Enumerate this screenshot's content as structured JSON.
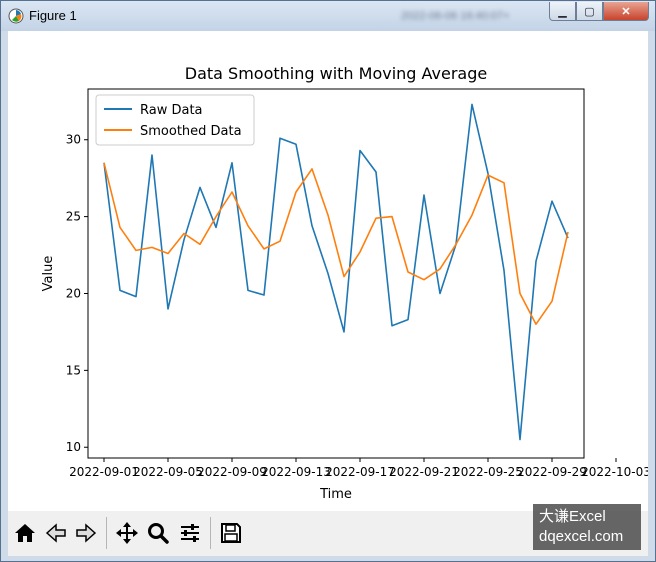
{
  "window": {
    "title": "Figure 1",
    "blurred_caption": "2022-06-06 16:40:07+"
  },
  "chart_data": {
    "type": "line",
    "title": "Data Smoothing with Moving Average",
    "xlabel": "Time",
    "ylabel": "Value",
    "x": [
      "2022-09-01",
      "2022-09-02",
      "2022-09-03",
      "2022-09-04",
      "2022-09-05",
      "2022-09-06",
      "2022-09-07",
      "2022-09-08",
      "2022-09-09",
      "2022-09-10",
      "2022-09-11",
      "2022-09-12",
      "2022-09-13",
      "2022-09-14",
      "2022-09-15",
      "2022-09-16",
      "2022-09-17",
      "2022-09-18",
      "2022-09-19",
      "2022-09-20",
      "2022-09-21",
      "2022-09-22",
      "2022-09-23",
      "2022-09-24",
      "2022-09-25",
      "2022-09-26",
      "2022-09-27",
      "2022-09-28",
      "2022-09-29",
      "2022-09-30"
    ],
    "xticks": [
      "2022-09-01",
      "2022-09-05",
      "2022-09-09",
      "2022-09-13",
      "2022-09-17",
      "2022-09-21",
      "2022-09-25",
      "2022-09-29",
      "2022-10-03"
    ],
    "xtick_labels": [
      "2022-09-01",
      "2022-09-05",
      "2022-09-09",
      "2022-09-13",
      "2022-09-17",
      "2022-09-21",
      "2022-09-25",
      "2022-09-29",
      "2022-10-03"
    ],
    "xlim": [
      "2022-08-31",
      "2022-10-01"
    ],
    "yticks": [
      10,
      15,
      20,
      25,
      30
    ],
    "ylim": [
      9.3,
      33.3
    ],
    "grid": false,
    "legend_position": "upper-left",
    "series": [
      {
        "name": "Raw Data",
        "color": "#1f77b4",
        "values": [
          28.5,
          20.2,
          19.8,
          29.0,
          19.0,
          23.5,
          26.9,
          24.3,
          28.5,
          20.2,
          19.9,
          30.1,
          29.7,
          24.4,
          21.3,
          17.5,
          29.3,
          27.9,
          17.9,
          18.3,
          26.4,
          20.0,
          23.2,
          32.3,
          27.8,
          21.5,
          10.5,
          22.1,
          26.0,
          23.6
        ]
      },
      {
        "name": "Smoothed Data",
        "color": "#ff7f0e",
        "values": [
          28.5,
          24.3,
          22.8,
          23.0,
          22.6,
          23.9,
          23.2,
          25.0,
          26.6,
          24.4,
          22.9,
          23.4,
          26.6,
          28.1,
          25.1,
          21.1,
          22.7,
          24.9,
          25.0,
          21.4,
          20.9,
          21.6,
          23.2,
          25.1,
          27.7,
          27.2,
          20.0,
          18.0,
          19.5,
          24.0
        ]
      }
    ]
  },
  "toolbar": {
    "buttons": [
      {
        "name": "home-button",
        "icon": "home-icon"
      },
      {
        "name": "back-button",
        "icon": "arrow-left-icon"
      },
      {
        "name": "forward-button",
        "icon": "arrow-right-icon"
      },
      {
        "name": "pan-button",
        "icon": "move-icon"
      },
      {
        "name": "zoom-button",
        "icon": "magnifier-icon"
      },
      {
        "name": "configure-subplots-button",
        "icon": "sliders-icon"
      },
      {
        "name": "save-button",
        "icon": "floppy-disk-icon"
      }
    ]
  },
  "watermark": {
    "line1": "大谦Excel",
    "line2": "dqexcel.com"
  }
}
